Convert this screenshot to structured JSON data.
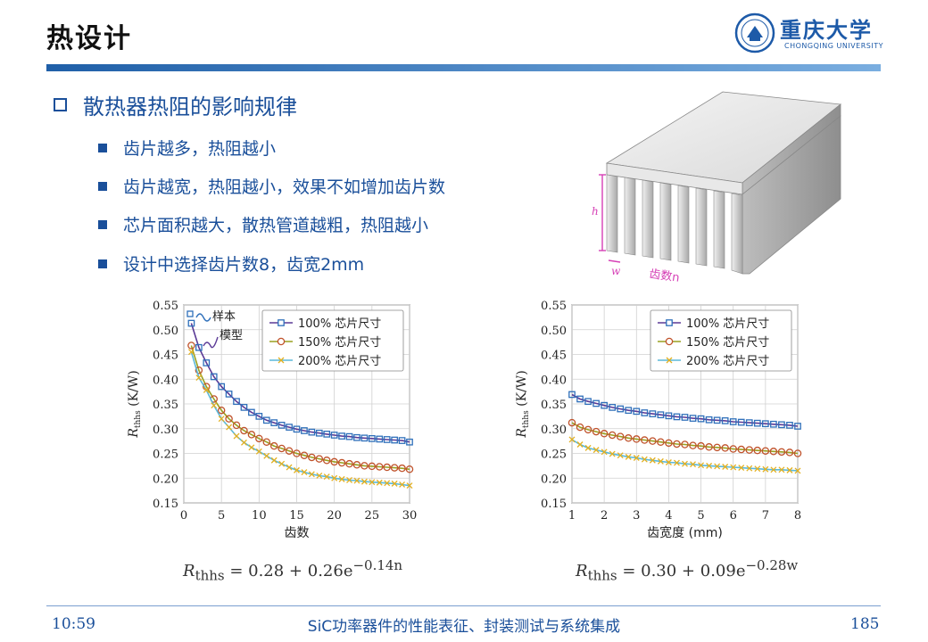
{
  "slide": {
    "title": "热设计",
    "logo": {
      "name": "重庆大学",
      "subtitle": "CHONGQING UNIVERSITY",
      "color": "#1d5aa8"
    },
    "section_heading": "散热器热阻的影响规律",
    "bullets": [
      "齿片越多，热阻越小",
      "齿片越宽，热阻越小，效果不如增加齿片数",
      "芯片面积越大，散热管道越粗，热阻越小",
      "设计中选择齿片数8，齿宽2mm"
    ],
    "heatsink_labels": {
      "height": "h",
      "width": "w",
      "count": "齿数n"
    }
  },
  "footer": {
    "time": "10:59",
    "title": "SiC功率器件的性能表征、封装测试与系统集成",
    "page": "185"
  },
  "chart_data": [
    {
      "type": "line",
      "xlabel": "齿数",
      "ylabel_main": "R",
      "ylabel_sub": "thhs",
      "ylabel_unit": " (K/W)",
      "xlim": [
        0,
        30
      ],
      "ylim": [
        0.15,
        0.55
      ],
      "xticks": [
        0,
        5,
        10,
        15,
        20,
        25,
        30
      ],
      "yticks": [
        0.15,
        0.2,
        0.25,
        0.3,
        0.35,
        0.4,
        0.45,
        0.5,
        0.55
      ],
      "grid": true,
      "legend_position": "top-right",
      "annotation": {
        "sample": "样本",
        "model": "模型"
      },
      "series": [
        {
          "name": "100% 芯片尺寸",
          "marker": "square",
          "color": "#2e6fba",
          "line_color": "#5b3a96",
          "x": [
            1,
            2,
            3,
            4,
            5,
            6,
            7,
            8,
            9,
            10,
            11,
            12,
            13,
            14,
            15,
            16,
            17,
            18,
            19,
            20,
            21,
            22,
            23,
            24,
            25,
            26,
            27,
            28,
            29,
            30
          ],
          "y": [
            0.513,
            0.464,
            0.433,
            0.405,
            0.385,
            0.37,
            0.355,
            0.343,
            0.333,
            0.325,
            0.317,
            0.312,
            0.307,
            0.303,
            0.299,
            0.296,
            0.293,
            0.291,
            0.289,
            0.287,
            0.285,
            0.284,
            0.282,
            0.281,
            0.28,
            0.279,
            0.278,
            0.277,
            0.276,
            0.273
          ]
        },
        {
          "name": "150% 芯片尺寸",
          "marker": "circle",
          "color": "#c0522b",
          "line_color": "#9aa020",
          "x": [
            1,
            2,
            3,
            4,
            5,
            6,
            7,
            8,
            9,
            10,
            11,
            12,
            13,
            14,
            15,
            16,
            17,
            18,
            19,
            20,
            21,
            22,
            23,
            24,
            25,
            26,
            27,
            28,
            29,
            30
          ],
          "y": [
            0.468,
            0.418,
            0.385,
            0.36,
            0.337,
            0.32,
            0.307,
            0.296,
            0.288,
            0.28,
            0.273,
            0.265,
            0.26,
            0.255,
            0.25,
            0.246,
            0.242,
            0.239,
            0.236,
            0.233,
            0.231,
            0.229,
            0.227,
            0.225,
            0.224,
            0.223,
            0.222,
            0.221,
            0.22,
            0.218
          ]
        },
        {
          "name": "200% 芯片尺寸",
          "marker": "x",
          "color": "#e3b020",
          "line_color": "#5bb8d8",
          "x": [
            1,
            2,
            3,
            4,
            5,
            6,
            7,
            8,
            9,
            10,
            11,
            12,
            13,
            14,
            15,
            16,
            17,
            18,
            19,
            20,
            21,
            22,
            23,
            24,
            25,
            26,
            27,
            28,
            29,
            30
          ],
          "y": [
            0.455,
            0.403,
            0.378,
            0.347,
            0.32,
            0.303,
            0.285,
            0.272,
            0.262,
            0.254,
            0.245,
            0.236,
            0.229,
            0.222,
            0.216,
            0.212,
            0.208,
            0.205,
            0.203,
            0.2,
            0.198,
            0.196,
            0.195,
            0.193,
            0.192,
            0.191,
            0.19,
            0.189,
            0.187,
            0.185
          ]
        }
      ],
      "formula": {
        "lhs_main": "R",
        "lhs_sub": "thhs",
        "rhs": " = 0.28 + 0.26e",
        "exp": "−0.14n"
      }
    },
    {
      "type": "line",
      "xlabel": "齿宽度 (mm)",
      "ylabel_main": "R",
      "ylabel_sub": "thhs",
      "ylabel_unit": " (K/W)",
      "xlim": [
        1,
        8
      ],
      "ylim": [
        0.15,
        0.55
      ],
      "xticks": [
        1,
        2,
        3,
        4,
        5,
        6,
        7,
        8
      ],
      "yticks": [
        0.15,
        0.2,
        0.25,
        0.3,
        0.35,
        0.4,
        0.45,
        0.5,
        0.55
      ],
      "grid": true,
      "legend_position": "top-right",
      "series": [
        {
          "name": "100% 芯片尺寸",
          "marker": "square",
          "color": "#2e6fba",
          "line_color": "#5b3a96",
          "x": [
            1.0,
            1.25,
            1.5,
            1.75,
            2.0,
            2.25,
            2.5,
            2.75,
            3.0,
            3.25,
            3.5,
            3.75,
            4.0,
            4.25,
            4.5,
            4.75,
            5.0,
            5.25,
            5.5,
            5.75,
            6.0,
            6.25,
            6.5,
            6.75,
            7.0,
            7.25,
            7.5,
            7.75,
            8.0
          ],
          "y": [
            0.369,
            0.36,
            0.355,
            0.351,
            0.347,
            0.343,
            0.34,
            0.337,
            0.335,
            0.332,
            0.33,
            0.328,
            0.326,
            0.324,
            0.323,
            0.321,
            0.32,
            0.318,
            0.317,
            0.316,
            0.314,
            0.313,
            0.312,
            0.311,
            0.31,
            0.309,
            0.308,
            0.307,
            0.305
          ]
        },
        {
          "name": "150% 芯片尺寸",
          "marker": "circle",
          "color": "#c0522b",
          "line_color": "#9aa020",
          "x": [
            1.0,
            1.25,
            1.5,
            1.75,
            2.0,
            2.25,
            2.5,
            2.75,
            3.0,
            3.25,
            3.5,
            3.75,
            4.0,
            4.25,
            4.5,
            4.75,
            5.0,
            5.25,
            5.5,
            5.75,
            6.0,
            6.25,
            6.5,
            6.75,
            7.0,
            7.25,
            7.5,
            7.75,
            8.0
          ],
          "y": [
            0.312,
            0.303,
            0.298,
            0.294,
            0.29,
            0.287,
            0.284,
            0.281,
            0.279,
            0.277,
            0.275,
            0.273,
            0.271,
            0.269,
            0.268,
            0.266,
            0.265,
            0.263,
            0.262,
            0.261,
            0.259,
            0.258,
            0.257,
            0.256,
            0.255,
            0.254,
            0.253,
            0.252,
            0.25
          ]
        },
        {
          "name": "200% 芯片尺寸",
          "marker": "x",
          "color": "#e3b020",
          "line_color": "#5bb8d8",
          "x": [
            1.0,
            1.25,
            1.5,
            1.75,
            2.0,
            2.25,
            2.5,
            2.75,
            3.0,
            3.25,
            3.5,
            3.75,
            4.0,
            4.25,
            4.5,
            4.75,
            5.0,
            5.25,
            5.5,
            5.75,
            6.0,
            6.25,
            6.5,
            6.75,
            7.0,
            7.25,
            7.5,
            7.75,
            8.0
          ],
          "y": [
            0.278,
            0.268,
            0.261,
            0.257,
            0.253,
            0.249,
            0.246,
            0.243,
            0.241,
            0.238,
            0.236,
            0.234,
            0.232,
            0.231,
            0.229,
            0.228,
            0.226,
            0.225,
            0.224,
            0.223,
            0.222,
            0.221,
            0.22,
            0.219,
            0.218,
            0.217,
            0.217,
            0.216,
            0.215
          ]
        }
      ],
      "formula": {
        "lhs_main": "R",
        "lhs_sub": "thhs",
        "rhs": " = 0.30 + 0.09e",
        "exp": "−0.28w"
      }
    }
  ]
}
